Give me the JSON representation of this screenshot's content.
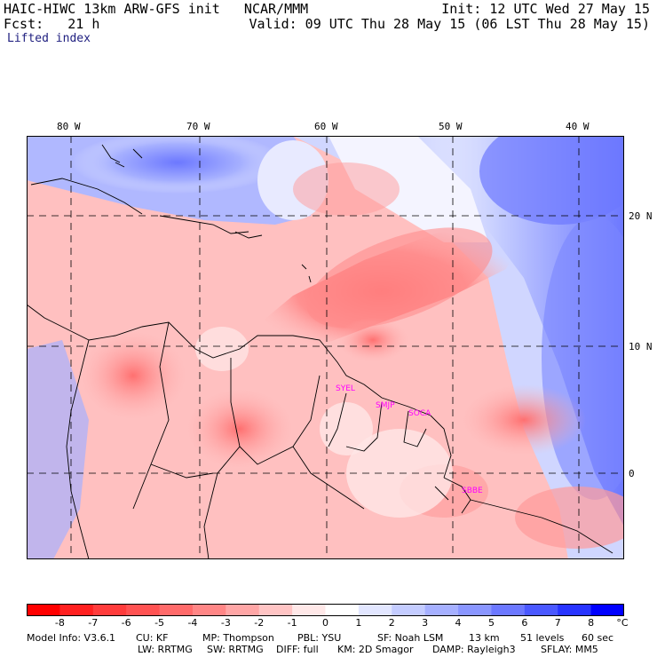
{
  "header": {
    "title_left": "HAIC-HIWC 13km ARW-GFS init   NCAR/MMM",
    "init": "Init: 12 UTC Wed 27 May 15",
    "fcst": "Fcst:   21 h",
    "valid": "Valid: 09 UTC Thu 28 May 15 (06 LST Thu 28 May 15)",
    "field": "Lifted index"
  },
  "map": {
    "lon_labels": [
      "80 W",
      "70 W",
      "60 W",
      "50 W",
      "40 W"
    ],
    "lat_labels": [
      "20 N",
      "10 N",
      "0"
    ],
    "stations": [
      "SYEL",
      "SMJP",
      "SOCA",
      "SBBE"
    ]
  },
  "colorbar": {
    "labels": [
      "-8",
      "-7",
      "-6",
      "-5",
      "-4",
      "-3",
      "-2",
      "-1",
      "0",
      "1",
      "2",
      "3",
      "4",
      "5",
      "6",
      "7",
      "8"
    ],
    "unit": "°C",
    "colors": [
      "#ff0000",
      "#ff2020",
      "#ff3c3c",
      "#ff5252",
      "#ff6a6a",
      "#ff8686",
      "#ffa6a6",
      "#ffc4c4",
      "#ffe8e8",
      "#ffffff",
      "#e2e6ff",
      "#c4ccff",
      "#a6b0ff",
      "#8a96ff",
      "#6c78ff",
      "#4a58ff",
      "#2834ff",
      "#0000ff"
    ]
  },
  "footer": {
    "line1": [
      "Model Info: V3.6.1",
      "CU: KF",
      "MP: Thompson",
      "PBL: YSU",
      "SF: Noah LSM",
      "13 km",
      "51 levels",
      "60 sec"
    ],
    "line2": [
      "LW: RRTMG",
      "SW: RRTMG",
      "DIFF: full",
      "KM: 2D Smagor",
      "DAMP: Rayleigh3",
      "SFLAY: MM5"
    ]
  }
}
